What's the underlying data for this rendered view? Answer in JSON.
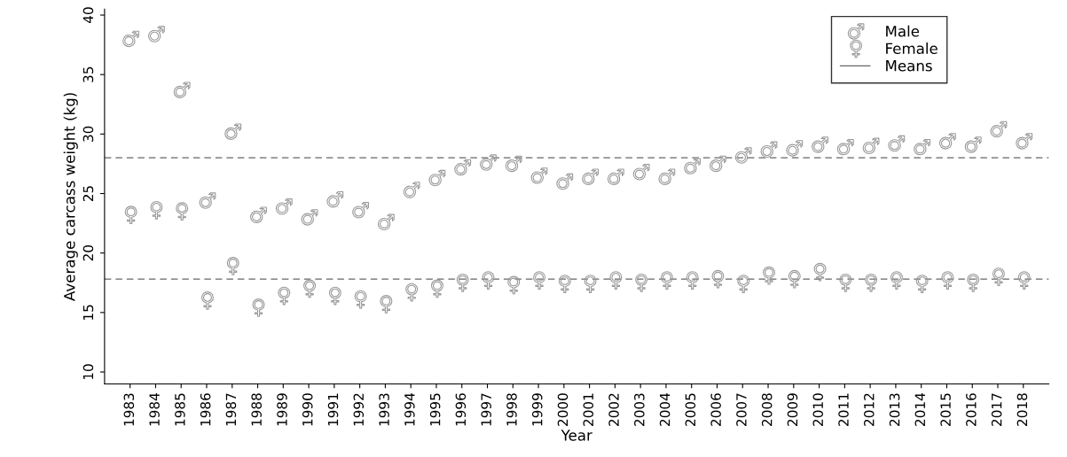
{
  "chart_data": {
    "type": "scatter",
    "xlabel": "Year",
    "ylabel": "Average carcass weight (kg)",
    "categories": [
      "1983",
      "1984",
      "1985",
      "1986",
      "1987",
      "1988",
      "1989",
      "1990",
      "1991",
      "1992",
      "1993",
      "1994",
      "1995",
      "1996",
      "1997",
      "1998",
      "1999",
      "2000",
      "2001",
      "2002",
      "2003",
      "2004",
      "2005",
      "2006",
      "2007",
      "2008",
      "2009",
      "2010",
      "2011",
      "2012",
      "2013",
      "2014",
      "2015",
      "2016",
      "2017",
      "2018"
    ],
    "series": [
      {
        "name": "Male",
        "color": "#999999",
        "values": [
          38.0,
          38.4,
          33.7,
          24.4,
          30.2,
          23.2,
          23.9,
          23.0,
          24.5,
          23.6,
          22.6,
          25.3,
          26.3,
          27.2,
          27.6,
          27.5,
          26.5,
          26.0,
          26.4,
          26.4,
          26.8,
          26.4,
          27.3,
          27.5,
          28.2,
          28.7,
          28.8,
          29.1,
          28.9,
          29.0,
          29.2,
          28.9,
          29.4,
          29.1,
          30.4,
          29.4
        ]
      },
      {
        "name": "Female",
        "color": "#999999",
        "values": [
          23.2,
          23.6,
          23.5,
          16.0,
          18.9,
          15.4,
          16.4,
          17.0,
          16.4,
          16.1,
          15.7,
          16.7,
          17.0,
          17.5,
          17.7,
          17.3,
          17.7,
          17.4,
          17.4,
          17.7,
          17.5,
          17.7,
          17.7,
          17.8,
          17.4,
          18.1,
          17.8,
          18.4,
          17.5,
          17.5,
          17.7,
          17.4,
          17.7,
          17.5,
          18.0,
          17.7
        ]
      }
    ],
    "ref_lines": [
      {
        "axis": "y",
        "value": 28.0,
        "label": "Means",
        "color": "#666666",
        "line_style": "dashed"
      },
      {
        "axis": "y",
        "value": 17.8,
        "label": null,
        "color": "#666666",
        "line_style": "dashed"
      }
    ],
    "ylim": [
      9,
      40.5
    ],
    "yticks": [
      10,
      15,
      20,
      25,
      30,
      35,
      40
    ],
    "grid": false,
    "legend": "top right"
  }
}
